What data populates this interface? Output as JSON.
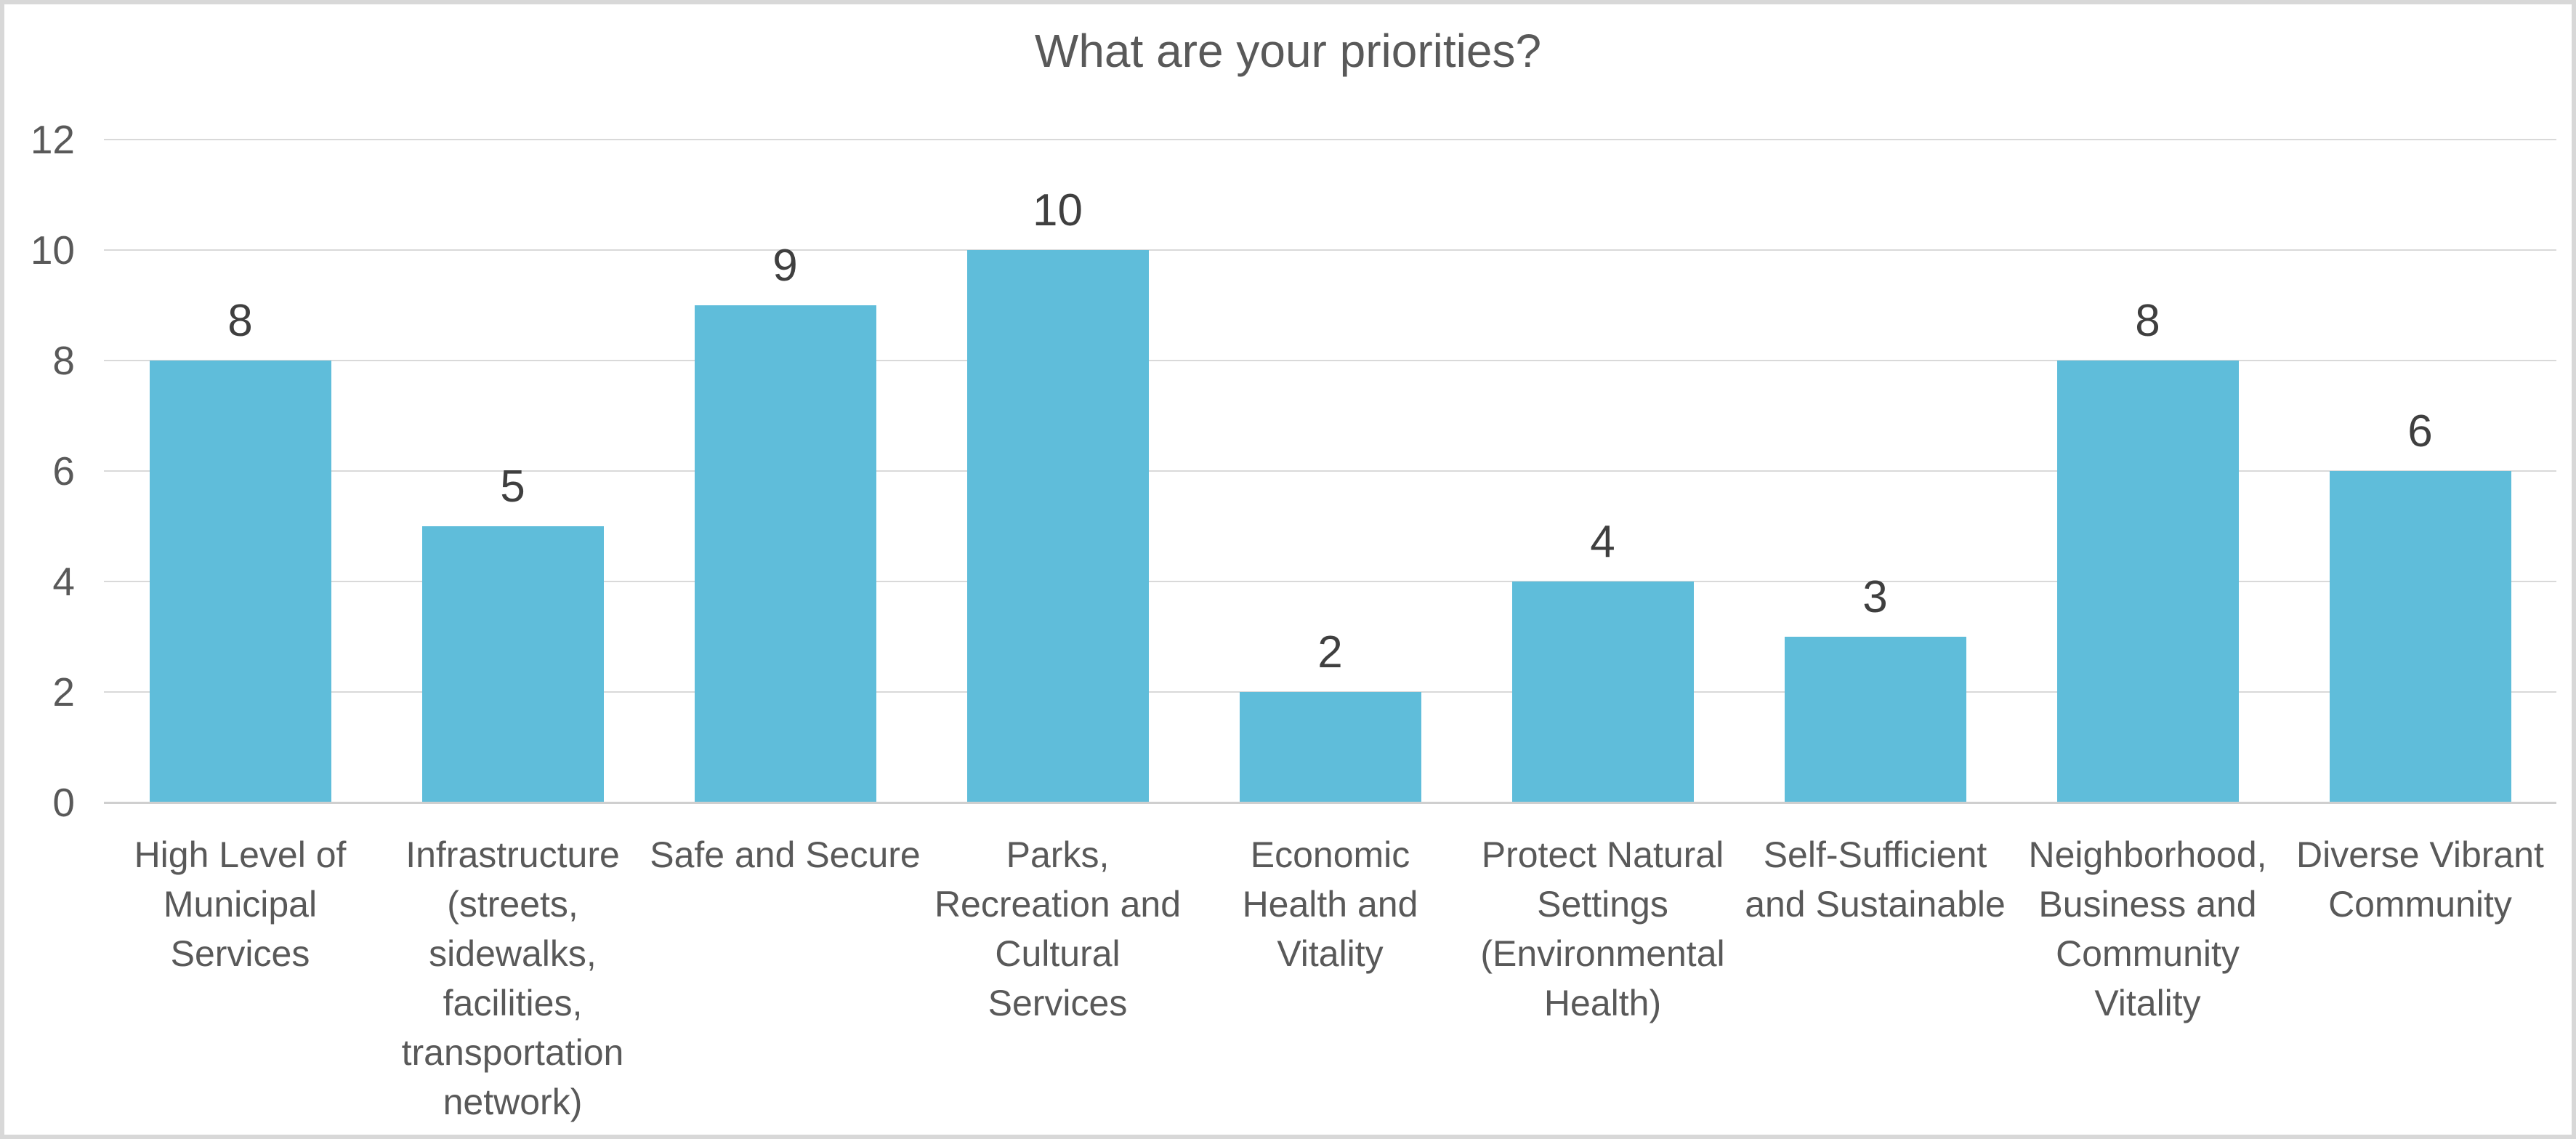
{
  "chart_data": {
    "type": "bar",
    "title": "What are your priorities?",
    "categories": [
      "High Level of Municipal Services",
      "Infrastructure (streets, sidewalks, facilities, transportation network)",
      "Safe and Secure",
      "Parks, Recreation and Cultural Services",
      "Economic Health and Vitality",
      "Protect Natural Settings (Environmental Health)",
      "Self-Sufficient and Sustainable",
      "Neighborhood, Business and Community Vitality",
      "Diverse Vibrant Community"
    ],
    "category_label_lines": [
      [
        "High Level of",
        "Municipal",
        "Services"
      ],
      [
        "Infrastructure",
        "(streets,",
        "sidewalks,",
        "facilities,",
        "transportation",
        "network)"
      ],
      [
        "Safe and Secure"
      ],
      [
        "Parks,",
        "Recreation and",
        "Cultural Services"
      ],
      [
        "Economic",
        "Health and",
        "Vitality"
      ],
      [
        "Protect Natural",
        "Settings",
        "(Environmental",
        "Health)"
      ],
      [
        "Self-Sufficient",
        "and Sustainable"
      ],
      [
        "Neighborhood,",
        "Business and",
        "Community",
        "Vitality"
      ],
      [
        "Diverse Vibrant",
        "Community"
      ]
    ],
    "values": [
      8,
      5,
      9,
      10,
      2,
      4,
      3,
      8,
      6
    ],
    "data_labels_shown": true,
    "xlabel": "",
    "ylabel": "",
    "ylim": [
      0,
      12
    ],
    "yticks": [
      0,
      2,
      4,
      6,
      8,
      10,
      12
    ],
    "grid": true,
    "legend": false,
    "colors": {
      "bar": "#5fbdda",
      "title_text": "#595959",
      "axis_text": "#595959",
      "data_label_text": "#3f3f3f",
      "gridline": "#d9d9d9",
      "axis_line": "#cfcfcf",
      "frame_border": "#d8d8d8",
      "background": "#ffffff"
    }
  }
}
